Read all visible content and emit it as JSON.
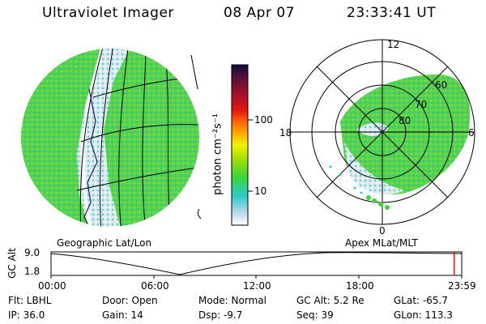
{
  "header": {
    "title": "Ultraviolet Imager",
    "date": "08 Apr 07",
    "time": "23:33:41 UT"
  },
  "geo_panel": {
    "caption": "Geographic Lat/Lon"
  },
  "polar_panel": {
    "caption": "Apex MLat/MLT",
    "mlt_labels": {
      "top": "12",
      "left": "18",
      "right": "6",
      "bottom": "0"
    },
    "lat_labels": [
      "60",
      "70",
      "80"
    ]
  },
  "colorbar": {
    "unit_label": "photon cm⁻²s⁻¹",
    "ticks": [
      "100",
      "10"
    ],
    "colors": [
      "#0c0c40",
      "#5a0f3c",
      "#a0102a",
      "#e01414",
      "#ff6a00",
      "#ffb400",
      "#f4f400",
      "#a8e000",
      "#3cd43c",
      "#2ccaca",
      "#b8d8e8",
      "#ffffff"
    ]
  },
  "altitude_plot": {
    "ylabel": "GC Alt",
    "ytop": "9.0",
    "ybottom": "1.8",
    "xticks": [
      "00:00",
      "06:00",
      "12:00",
      "18:00",
      "23:59"
    ],
    "marker_hour": 23.55
  },
  "info": {
    "filter": "Flt: LBHL",
    "ip": "IP: 36.0",
    "door": "Door: Open",
    "gain": "Gain: 14",
    "mode": "Mode: Normal",
    "dsp": "Dsp:   -9.7",
    "gc_alt": "GC Alt: 5.2 Re",
    "seq": "Seq: 39",
    "glat": "GLat: -65.7",
    "glon": "GLon: 113.3"
  }
}
